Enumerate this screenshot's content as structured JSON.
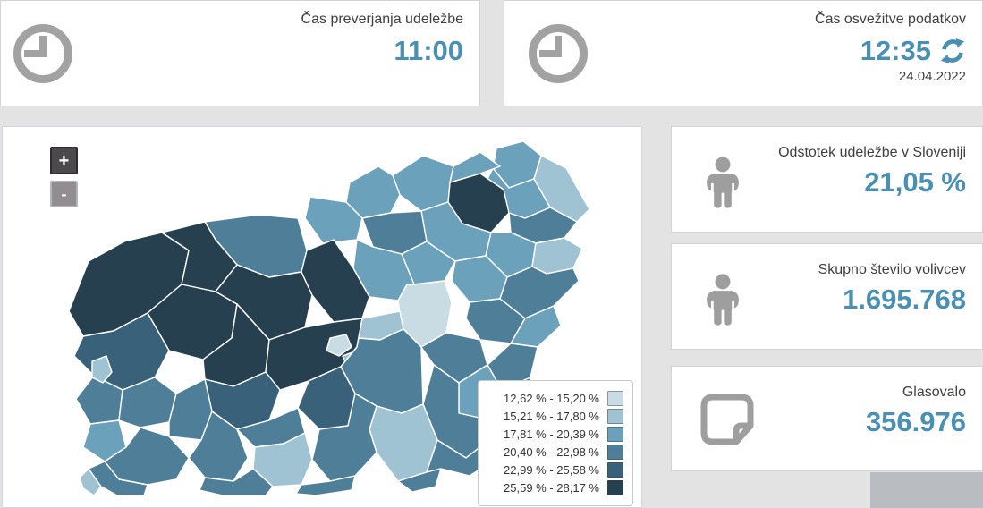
{
  "top_cards": [
    {
      "label": "Čas preverjanja udeležbe",
      "value": "11:00"
    },
    {
      "label": "Čas osvežitve podatkov",
      "value": "12:35",
      "date": "24.04.2022"
    }
  ],
  "stats": [
    {
      "label": "Odstotek udeležbe v Sloveniji",
      "value": "21,05 %",
      "icon": "person-icon"
    },
    {
      "label": "Skupno število volivcev",
      "value": "1.695.768",
      "icon": "person-icon"
    },
    {
      "label": "Glasovalo",
      "value": "356.976",
      "icon": "note-icon"
    }
  ],
  "colors": {
    "accent_blue": "#4a90b4",
    "icon_gray": "#a2a2a2",
    "page_bg": "#e3e3e3"
  },
  "map": {
    "zoom_in_label": "+",
    "zoom_out_label": "-",
    "palette": {
      "c1": "#c9dce4",
      "c2": "#9fc3d2",
      "c3": "#6ba1bb",
      "c4": "#4f7f98",
      "c5": "#3a617a",
      "c6": "#27404f"
    },
    "legend": [
      {
        "label": "12,62 % - 15,20 %",
        "c": "c1"
      },
      {
        "label": "15,21 % - 17,80 %",
        "c": "c2"
      },
      {
        "label": "17,81 % - 20,39 %",
        "c": "c3"
      },
      {
        "label": "20,40 % - 22,98 %",
        "c": "c4"
      },
      {
        "label": "22,99 % - 25,58 %",
        "c": "c5"
      },
      {
        "label": "25,59 % - 28,17 %",
        "c": "c6"
      }
    ],
    "regions": [
      {
        "c": "c3",
        "p": "552,24 582,16 602,32 594,58 566,68 548,46"
      },
      {
        "c": "c2",
        "p": "602,32 630,46 656,92 642,106 612,90 594,58"
      },
      {
        "c": "c3",
        "p": "534,74 548,46 566,68 594,58 612,90 584,102 552,96"
      },
      {
        "c": "c6",
        "p": "500,62 534,52 560,70 566,96 546,118 514,108 498,84"
      },
      {
        "c": "c3",
        "p": "436,54 470,32 504,44 500,62 498,84 468,94 444,76"
      },
      {
        "c": "c3",
        "p": "504,44 534,28 556,44 534,52 500,62"
      },
      {
        "c": "c4",
        "p": "566,96 584,102 612,90 642,106 628,124 596,130 568,118"
      },
      {
        "c": "c3",
        "p": "468,94 498,84 514,108 546,118 540,144 506,150 474,128"
      },
      {
        "c": "c3",
        "p": "546,118 568,118 596,130 592,156 564,168 540,144"
      },
      {
        "c": "c2",
        "p": "596,130 628,124 648,136 638,158 608,164 592,156"
      },
      {
        "c": "c3",
        "p": "388,62 420,44 436,54 444,76 434,96 402,102 384,84"
      },
      {
        "c": "c3",
        "p": "344,78 384,84 402,102 396,126 358,130 338,102"
      },
      {
        "c": "c4",
        "p": "402,102 434,96 468,94 474,128 446,142 414,134"
      },
      {
        "c": "c3",
        "p": "474,128 506,150 494,172 460,176 446,142"
      },
      {
        "c": "c3",
        "p": "506,150 540,144 564,168 556,192 522,196 502,172"
      },
      {
        "c": "c1",
        "p": "452,176 460,176 494,172 502,196 496,230 468,246 446,224 442,194"
      },
      {
        "c": "c3",
        "p": "396,126 414,134 446,142 460,176 452,176 442,194 410,190 392,158"
      },
      {
        "c": "c4",
        "p": "564,168 592,156 608,164 638,158 644,172 616,200 584,214 556,192"
      },
      {
        "c": "c4",
        "p": "522,196 556,192 584,214 568,242 534,238 518,214"
      },
      {
        "c": "c3",
        "p": "584,214 616,200 624,222 598,246 568,242"
      },
      {
        "c": "c4",
        "p": "496,230 534,238 542,266 510,286 482,266 468,246"
      },
      {
        "c": "c4",
        "p": "542,266 568,242 598,246 590,280 558,294"
      },
      {
        "c": "c3",
        "p": "510,286 542,266 558,294 546,328 510,320"
      },
      {
        "c": "c4",
        "p": "546,328 558,294 590,280 586,314 564,342 544,350"
      },
      {
        "c": "c4",
        "p": "482,266 510,286 510,320 546,328 544,350 518,370 486,350 470,310"
      },
      {
        "c": "c6",
        "p": "74,206 96,150 136,128 178,118 208,138 200,176 162,208 124,228 90,234"
      },
      {
        "c": "c4",
        "p": "226,106 286,98 330,102 340,138 334,162 298,168 262,154 238,126"
      },
      {
        "c": "c6",
        "p": "178,118 226,106 238,126 262,154 238,184 200,176 208,138"
      },
      {
        "c": "c6",
        "p": "200,176 238,184 262,198 256,236 224,260 186,250 162,208"
      },
      {
        "c": "c6",
        "p": "262,154 298,168 334,162 346,188 338,224 298,238 262,198 238,184"
      },
      {
        "c": "c6",
        "p": "334,162 340,138 370,126 392,158 410,190 402,214 370,218 346,188"
      },
      {
        "c": "c6",
        "p": "224,260 256,236 262,198 298,238 294,274 258,290 226,282"
      },
      {
        "c": "c5",
        "p": "90,234 124,228 162,208 186,250 170,280 134,294 102,278 80,256"
      },
      {
        "c": "c4",
        "p": "102,278 134,294 130,328 98,332 82,304"
      },
      {
        "c": "c3",
        "p": "98,332 130,328 138,358 114,374 90,358"
      },
      {
        "c": "c4",
        "p": "134,294 170,280 194,298 186,330 154,336 130,328"
      },
      {
        "c": "c6",
        "p": "294,274 298,238 338,224 370,218 402,214 396,246 378,268 342,284 310,294"
      },
      {
        "c": "c5",
        "p": "226,282 258,290 294,274 310,294 298,328 262,338 234,318"
      },
      {
        "c": "c4",
        "p": "194,298 226,282 234,318 222,350 186,346 186,330"
      },
      {
        "c": "c2",
        "p": "402,214 444,206 448,226 422,238 398,236 396,246"
      },
      {
        "c": "c1",
        "p": "366,236 384,232 390,246 376,256 362,250"
      },
      {
        "c": "c2",
        "p": "380,256 396,250 402,262 386,270"
      },
      {
        "c": "c4",
        "p": "378,268 396,246 398,236 422,238 448,226 468,246 470,310 446,320 418,312 394,298"
      },
      {
        "c": "c5",
        "p": "342,284 378,268 394,298 386,334 354,338 330,314"
      },
      {
        "c": "c4",
        "p": "262,338 298,328 330,314 338,342 314,354 282,358"
      },
      {
        "c": "c4",
        "p": "222,350 234,318 262,338 274,370 258,396 226,392 208,370"
      },
      {
        "c": "c2",
        "p": "282,358 314,354 338,342 346,372 334,400 302,402 280,382"
      },
      {
        "c": "c2",
        "p": "418,312 446,320 470,310 486,350 474,386 442,396 418,364 410,338"
      },
      {
        "c": "c4",
        "p": "346,372 354,338 386,334 394,298 418,312 410,338 418,364 394,390 366,396"
      },
      {
        "c": "c4",
        "p": "486,350 518,370 544,350 564,342 554,370 522,390 490,382 474,386"
      },
      {
        "c": "c4",
        "p": "114,374 138,358 154,336 186,346 208,370 194,394 162,400 130,394"
      },
      {
        "c": "c4",
        "p": "130,394 162,400 158,412 128,412 110,402 96,382 114,374"
      },
      {
        "c": "c2",
        "p": "96,382 110,402 102,412 90,404 86,392"
      },
      {
        "c": "c4",
        "p": "226,392 258,396 280,382 302,402 294,412 246,412 220,406"
      },
      {
        "c": "c4",
        "p": "334,400 366,396 394,390 390,406 350,412 328,410"
      },
      {
        "c": "c4",
        "p": "442,396 474,386 490,382 484,402 458,408"
      },
      {
        "c": "c2",
        "p": "100,262 116,256 122,274 112,286 100,280"
      }
    ]
  }
}
